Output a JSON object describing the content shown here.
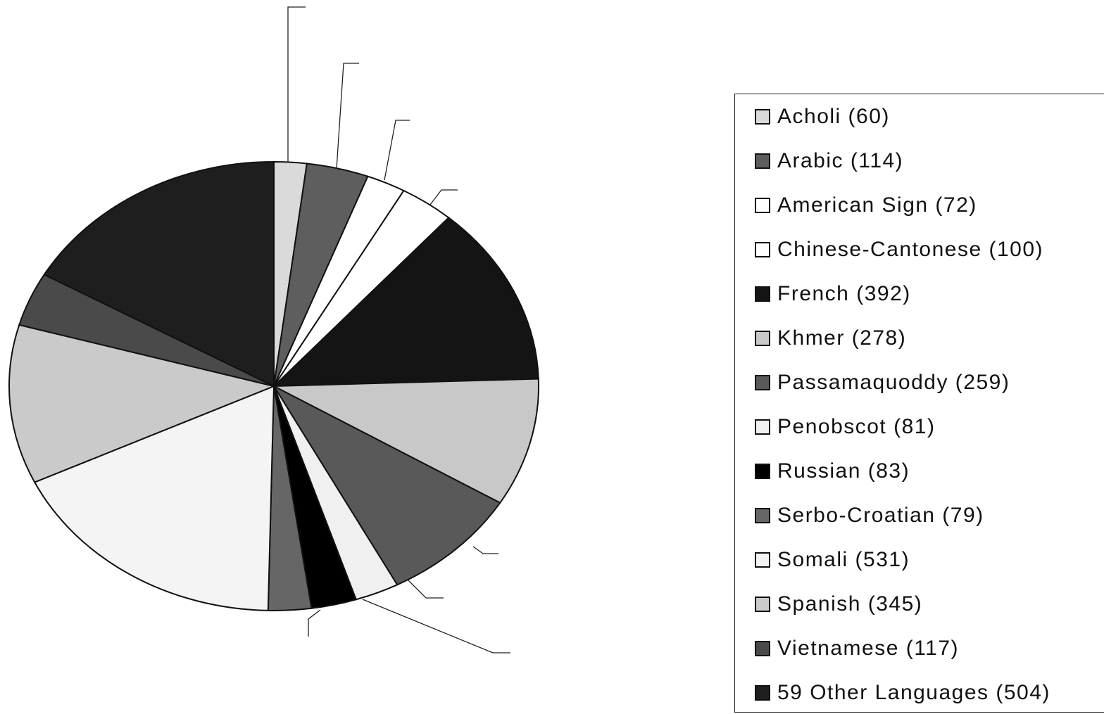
{
  "chart_data": {
    "type": "pie",
    "title": "",
    "legend_position": "right",
    "slices": [
      {
        "legend": "Acholi (60)",
        "value": 60,
        "color": "#dadada"
      },
      {
        "legend": "Arabic (114)",
        "value": 114,
        "color": "#5e5e5e"
      },
      {
        "legend": "American Sign (72)",
        "value": 72,
        "color": "#ffffff"
      },
      {
        "legend": "Chinese-Cantonese (100)",
        "value": 100,
        "color": "#ffffff"
      },
      {
        "legend": "French (392)",
        "value": 392,
        "color": "#141414"
      },
      {
        "legend": "Khmer (278)",
        "value": 278,
        "color": "#c8c8c8"
      },
      {
        "legend": "Passamaquoddy (259)",
        "value": 259,
        "color": "#595959"
      },
      {
        "legend": "Penobscot (81)",
        "value": 81,
        "color": "#f0f0f0"
      },
      {
        "legend": "Russian (83)",
        "value": 83,
        "color": "#000000"
      },
      {
        "legend": "Serbo-Croatian (79)",
        "value": 79,
        "color": "#666666"
      },
      {
        "legend": "Somali (531)",
        "value": 531,
        "color": "#f4f4f4"
      },
      {
        "legend": "Spanish (345)",
        "value": 345,
        "color": "#cacaca"
      },
      {
        "legend": "Vietnamese (117)",
        "value": 117,
        "color": "#4a4a4a"
      },
      {
        "legend": "59 Other Languages (504)",
        "value": 504,
        "color": "#1e1e1e"
      }
    ]
  }
}
